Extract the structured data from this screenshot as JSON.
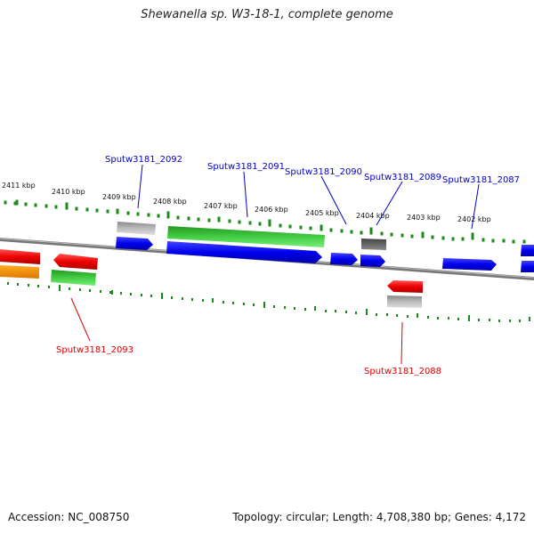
{
  "title": "Shewanella sp. W3-18-1, complete genome",
  "footer": {
    "accession": "Accession: NC_008750",
    "summary": "Topology: circular; Length: 4,708,380 bp; Genes: 4,172"
  },
  "scale_labels": [
    "2411 kbp",
    "2410 kbp",
    "2409 kbp",
    "2408 kbp",
    "2407 kbp",
    "2406 kbp",
    "2405 kbp",
    "2404 kbp",
    "2403 kbp",
    "2402 kbp"
  ],
  "gene_labels": {
    "g2093": "Sputw3181_2093",
    "g2092": "Sputw3181_2092",
    "g2091": "Sputw3181_2091",
    "g2090": "Sputw3181_2090",
    "g2089": "Sputw3181_2089",
    "g2088": "Sputw3181_2088",
    "g2087": "Sputw3181_2087"
  },
  "colors": {
    "forward_cds": "#0000ee",
    "reverse_cds": "#ee0000",
    "rna_green": "#22bb22",
    "gray_feature": "#aaaaaa",
    "orange_feature": "#ff9900",
    "tick_green": "#1a8a1a",
    "forward_label": "#0000cc",
    "reverse_label": "#dd0000"
  }
}
